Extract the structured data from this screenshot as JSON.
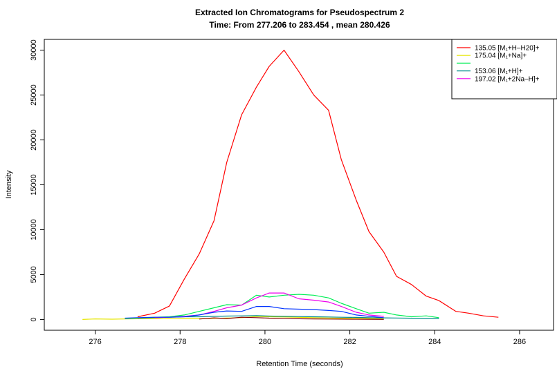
{
  "chart_data": {
    "type": "line",
    "title": "Extracted Ion Chromatograms for  Pseudospectrum 2",
    "subtitle": "Time: From 277.206 to 283.454 , mean 280.426",
    "xlabel": "Retention Time (seconds)",
    "ylabel": "Intensity",
    "xlim": [
      274.8,
      286.8
    ],
    "ylim": [
      -1200,
      31200
    ],
    "x_ticks": [
      "276",
      "278",
      "280",
      "282",
      "284",
      "286"
    ],
    "y_ticks": [
      "0",
      "5000",
      "10000",
      "15000",
      "20000",
      "25000",
      "30000"
    ],
    "legend_position": "top-right",
    "legend": [
      {
        "label": "135.05 [M₁+H–H20]+",
        "color": "#ff0000"
      },
      {
        "label": "175.04 [M₁+Na]+",
        "color": "#e6e600"
      },
      {
        "label": "",
        "color": "#00ee55"
      },
      {
        "label": "153.06 [M₁+H]+",
        "color": "#008b8b"
      },
      {
        "label": "197.02 [M₁+2Na–H]+",
        "color": "#ee00ee"
      }
    ],
    "series": [
      {
        "color": "#ff0000",
        "x": [
          277.0,
          277.4,
          277.75,
          278.1,
          278.45,
          278.8,
          279.1,
          279.45,
          279.8,
          280.1,
          280.45,
          280.8,
          281.15,
          281.5,
          281.8,
          282.15,
          282.45,
          282.8,
          283.1,
          283.45,
          283.8,
          284.1,
          284.5,
          284.8,
          285.15,
          285.5
        ],
        "y": [
          300,
          700,
          1500,
          4500,
          7300,
          11000,
          17500,
          22800,
          25900,
          28200,
          30000,
          27600,
          25000,
          23300,
          17800,
          13300,
          9800,
          7500,
          4800,
          3900,
          2600,
          2100,
          900,
          700,
          400,
          250
        ]
      },
      {
        "color": "#e6e600",
        "x": [
          275.7,
          276.0,
          276.4,
          276.7,
          277.0,
          277.4,
          277.75,
          278.1,
          278.45,
          278.8,
          279.1,
          279.45,
          279.8,
          280.1,
          280.45,
          280.8,
          281.15,
          281.5,
          281.8,
          282.15,
          282.45,
          282.8
        ],
        "y": [
          0,
          60,
          30,
          60,
          80,
          100,
          120,
          100,
          80,
          120,
          160,
          200,
          320,
          300,
          280,
          240,
          200,
          160,
          140,
          120,
          100,
          80
        ]
      },
      {
        "color": "#00ee55",
        "x": [
          276.7,
          277.0,
          277.4,
          277.75,
          278.1,
          278.45,
          278.8,
          279.1,
          279.45,
          279.8,
          280.1,
          280.45,
          280.8,
          281.15,
          281.5,
          281.8,
          282.15,
          282.45,
          282.8,
          283.1,
          283.45,
          283.8,
          284.1
        ],
        "y": [
          100,
          150,
          250,
          300,
          500,
          900,
          1300,
          1650,
          1600,
          2700,
          2500,
          2700,
          2800,
          2700,
          2400,
          1800,
          1200,
          700,
          800,
          500,
          300,
          400,
          200
        ]
      },
      {
        "color": "#008b8b",
        "x": [
          277.0,
          277.4,
          277.75,
          278.1,
          278.45,
          278.8,
          279.1,
          279.45,
          279.8,
          280.1,
          280.45,
          280.8,
          281.15,
          281.5,
          281.8,
          282.15,
          282.45,
          282.8,
          283.1,
          283.45,
          283.8,
          284.1
        ],
        "y": [
          150,
          200,
          250,
          300,
          300,
          350,
          380,
          400,
          420,
          380,
          350,
          320,
          300,
          280,
          250,
          230,
          200,
          180,
          160,
          140,
          100,
          80
        ]
      },
      {
        "color": "#ee00ee",
        "x": [
          277.4,
          277.75,
          278.1,
          278.45,
          278.8,
          279.1,
          279.45,
          279.8,
          280.1,
          280.45,
          280.8,
          281.15,
          281.5,
          281.8,
          282.15,
          282.45,
          282.8
        ],
        "y": [
          200,
          250,
          350,
          500,
          900,
          1300,
          1600,
          2400,
          2950,
          2950,
          2300,
          2150,
          1950,
          1450,
          800,
          500,
          350
        ]
      },
      {
        "color": "#0033ff",
        "x": [
          276.7,
          277.0,
          277.4,
          277.75,
          278.1,
          278.45,
          278.8,
          279.1,
          279.45,
          279.8,
          280.1,
          280.45,
          280.8,
          281.15,
          281.5,
          281.8,
          282.15,
          282.45,
          282.8
        ],
        "y": [
          150,
          200,
          250,
          250,
          300,
          500,
          800,
          950,
          900,
          1450,
          1450,
          1200,
          1150,
          1100,
          1000,
          900,
          500,
          350,
          200
        ]
      },
      {
        "color": "#8b0000",
        "x": [
          278.45,
          278.8,
          279.1,
          279.45,
          279.8,
          280.1,
          280.45,
          280.8,
          281.15,
          281.5,
          281.8,
          282.15,
          282.45,
          282.8
        ],
        "y": [
          50,
          180,
          100,
          250,
          200,
          150,
          120,
          80,
          60,
          50,
          40,
          30,
          20,
          10
        ]
      }
    ]
  }
}
